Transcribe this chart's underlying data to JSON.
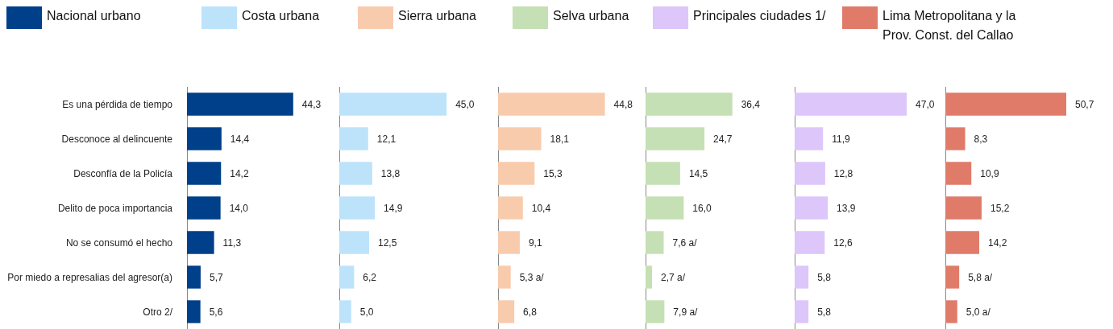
{
  "chart_data": [
    {
      "type": "bar",
      "orientation": "horizontal",
      "categories": [
        "Es una pérdida de tiempo",
        "Desconoce al delincuente",
        "Desconfía de la Policía",
        "Delito de poca importancia",
        "No se consumó el hecho",
        "Por miedo a represalias del agresor(a)",
        "Otro 2/"
      ],
      "tick_labels": "y",
      "legend": "top",
      "series": [
        {
          "name": "Nacional urbano",
          "color": "#003f8a",
          "values": [
            44.3,
            14.4,
            14.2,
            14.0,
            11.3,
            5.7,
            5.6
          ],
          "value_labels": [
            "44,3",
            "14,4",
            "14,2",
            "14,0",
            "11,3",
            "5,7",
            "5,6"
          ]
        }
      ]
    },
    {
      "type": "bar",
      "orientation": "horizontal",
      "categories": [
        null,
        null,
        null,
        null,
        null,
        null,
        null
      ],
      "tick_labels": false,
      "legend": "top",
      "series": [
        {
          "name": "Costa urbana",
          "color": "#bde3fb",
          "values": [
            45.0,
            12.1,
            13.8,
            14.9,
            12.5,
            6.2,
            5.0
          ],
          "value_labels": [
            "45,0",
            "12,1",
            "13,8",
            "14,9",
            "12,5",
            "6,2",
            "5,0"
          ]
        }
      ]
    },
    {
      "type": "bar",
      "orientation": "horizontal",
      "categories": [
        null,
        null,
        null,
        null,
        null,
        null,
        null
      ],
      "tick_labels": false,
      "legend": "top",
      "series": [
        {
          "name": "Sierra urbana",
          "color": "#f8cbad",
          "values": [
            44.8,
            18.1,
            15.3,
            10.4,
            9.1,
            5.3,
            6.8
          ],
          "value_labels": [
            "44,8",
            "18,1",
            "15,3",
            "10,4",
            "9,1",
            "5,3 a/",
            "6,8"
          ]
        }
      ]
    },
    {
      "type": "bar",
      "orientation": "horizontal",
      "categories": [
        null,
        null,
        null,
        null,
        null,
        null,
        null
      ],
      "tick_labels": false,
      "legend": "top",
      "series": [
        {
          "name": "Selva urbana",
          "color": "#c5e0b4",
          "values": [
            36.4,
            24.7,
            14.5,
            16.0,
            7.6,
            2.7,
            7.9
          ],
          "value_labels": [
            "36,4",
            "24,7",
            "14,5",
            "16,0",
            "7,6 a/",
            "2,7 a/",
            "7,9 a/"
          ]
        }
      ]
    },
    {
      "type": "bar",
      "orientation": "horizontal",
      "categories": [
        null,
        null,
        null,
        null,
        null,
        null,
        null
      ],
      "tick_labels": false,
      "legend": "top",
      "series": [
        {
          "name": "Principales ciudades 1/",
          "color": "#dcc6fa",
          "values": [
            47.0,
            11.9,
            12.8,
            13.9,
            12.6,
            5.8,
            5.8
          ],
          "value_labels": [
            "47,0",
            "11,9",
            "12,8",
            "13,9",
            "12,6",
            "5,8",
            "5,8"
          ]
        }
      ]
    },
    {
      "type": "bar",
      "orientation": "horizontal",
      "categories": [
        null,
        null,
        null,
        null,
        null,
        null,
        null
      ],
      "tick_labels": false,
      "legend": "top",
      "series": [
        {
          "name": "Lima Metropolitana y la Prov. Const. del Callao",
          "color": "#e07b6a",
          "values": [
            50.7,
            8.3,
            10.9,
            15.2,
            14.2,
            5.8,
            5.0
          ],
          "value_labels": [
            "50,7",
            "8,3",
            "10,9",
            "15,2",
            "14,2",
            "5,8 a/",
            "5,0 a/"
          ]
        }
      ]
    }
  ]
}
